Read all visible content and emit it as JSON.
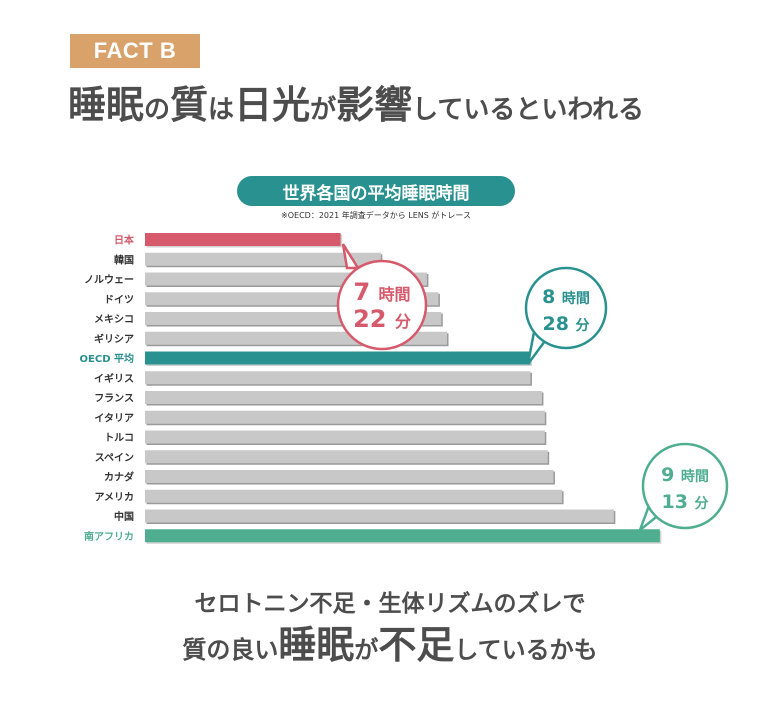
{
  "badge": "FACT B",
  "headline": [
    {
      "text": "睡眠",
      "size": "big"
    },
    {
      "text": "の",
      "size": "small"
    },
    {
      "text": "質",
      "size": "big"
    },
    {
      "text": "は",
      "size": "small"
    },
    {
      "text": "日光",
      "size": "big"
    },
    {
      "text": "が",
      "size": "small"
    },
    {
      "text": "影響",
      "size": "big"
    },
    {
      "text": "しているといわれる",
      "size": "small"
    }
  ],
  "colors": {
    "japan": "#d65a6b",
    "oecd": "#29918f",
    "south_africa": "#4fae8f",
    "other": "#c8c8c8",
    "badge": "#d9a26b",
    "text": "#4d4d4d"
  },
  "chart_data": {
    "type": "bar",
    "orientation": "horizontal",
    "title": "世界各国の平均睡眠時間",
    "source": "※OECD：2021 年調査データから LENS がトレース",
    "unit": "分",
    "categories": [
      "日本",
      "韓国",
      "ノルウェー",
      "ドイツ",
      "メキシコ",
      "ギリシア",
      "OECD 平均",
      "イギリス",
      "フランス",
      "イタリア",
      "トルコ",
      "スペイン",
      "カナダ",
      "アメリカ",
      "中国",
      "南アフリカ"
    ],
    "values": [
      442,
      456,
      472,
      476,
      477,
      479,
      508,
      508,
      512,
      513,
      513,
      514,
      516,
      519,
      537,
      553
    ],
    "highlight": {
      "日本": "japan",
      "OECD 平均": "oecd",
      "南アフリカ": "south_africa"
    },
    "xlim": [
      374,
      560
    ],
    "annotations": [
      {
        "target": "日本",
        "line1_num": "7",
        "line1_unit": "時間",
        "line2_num": "22",
        "line2_unit": "分",
        "color": "#d65a6b"
      },
      {
        "target": "OECD 平均",
        "line1_num": "8",
        "line1_unit": "時間",
        "line2_num": "28",
        "line2_unit": "分",
        "color": "#29918f"
      },
      {
        "target": "南アフリカ",
        "line1_num": "9",
        "line1_unit": "時間",
        "line2_num": "13",
        "line2_unit": "分",
        "color": "#4fae8f"
      }
    ]
  },
  "bottom": {
    "line1": "セロトニン不足・生体リズムのズレで",
    "line2": [
      {
        "text": "質の良い",
        "size": "small"
      },
      {
        "text": "睡眠",
        "size": "big"
      },
      {
        "text": "が",
        "size": "small"
      },
      {
        "text": "不足",
        "size": "big"
      },
      {
        "text": "しているかも",
        "size": "small"
      }
    ]
  }
}
